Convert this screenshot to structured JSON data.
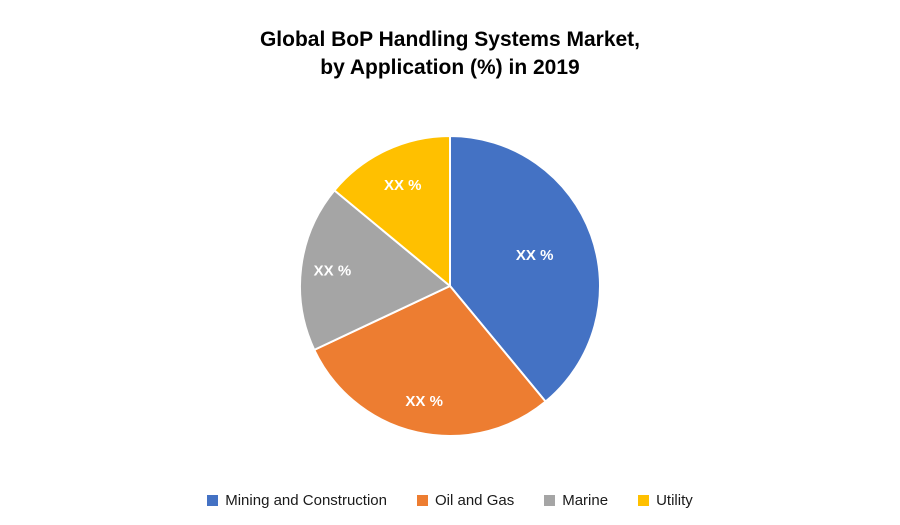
{
  "title": {
    "line1": "Global BoP Handling Systems Market,",
    "line2": "by Application (%) in 2019"
  },
  "chart_data": {
    "type": "pie",
    "title": "Global BoP Handling Systems Market, by Application (%) in 2019",
    "categories": [
      "Mining and Construction",
      "Oil and Gas",
      "Marine",
      "Utility"
    ],
    "values": [
      39,
      29,
      18,
      14
    ],
    "data_labels": [
      "XX %",
      "XX %",
      "XX %",
      "XX %"
    ],
    "colors": [
      "#4472C4",
      "#ED7D31",
      "#A5A5A5",
      "#FFC000"
    ],
    "legend_position": "bottom",
    "start_angle_deg": 0
  }
}
